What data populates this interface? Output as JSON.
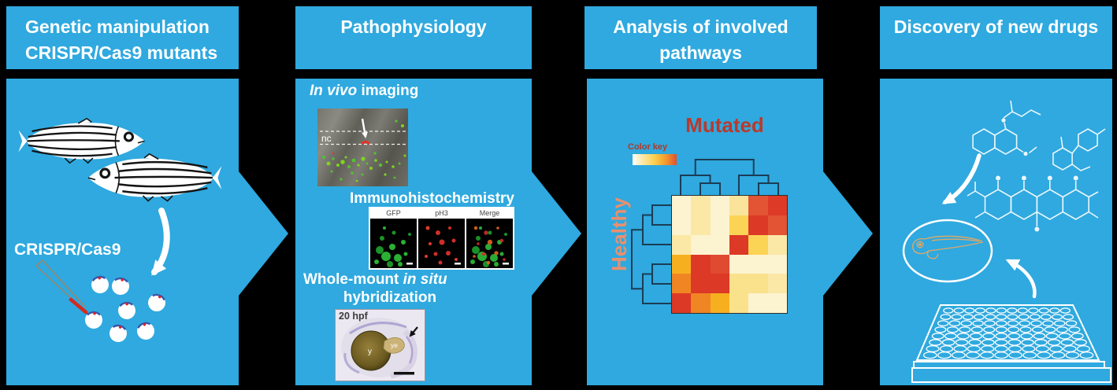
{
  "colors": {
    "panel_blue": "#2FA9DF",
    "background": "#000000",
    "text_white": "#FFFFFF",
    "mutated_red": "#B93A2C",
    "healthy_salmon": "#E8906E",
    "color_key_text": "#AF3A28",
    "dendrogram": "#1C3C55",
    "egg_cap_blue": "#3A55A8",
    "needle_red": "#D42A1E"
  },
  "panel1": {
    "header_line1": "Genetic manipulation",
    "header_line2": "CRISPR/Cas9 mutants",
    "crispr_label": "CRISPR/Cas9",
    "egg_count": 7
  },
  "panel2": {
    "header": "Pathophysiology",
    "invivo_label_italic": "In vivo",
    "invivo_label_rest": " imaging",
    "invivo_nc_label": "nc",
    "ihc_label": "Immunohistochemistry",
    "ihc_panel_labels": [
      "GFP",
      "pH3",
      "Merge"
    ],
    "wish_line1_regular": "Whole-mount ",
    "wish_line1_italic": "in situ",
    "wish_line2": "hybridization",
    "embryo_stage_label": "20 hpf",
    "embryo_yolk_label": "y",
    "embryo_ye_label": "ye"
  },
  "panel3": {
    "header_line1": "Analysis of involved",
    "header_line2": "pathways",
    "mutated_label": "Mutated",
    "healthy_label": "Healthy",
    "color_key_label": "Color key",
    "chart_data": {
      "type": "heatmap",
      "rows": 6,
      "cols": 6,
      "col_group_label": "Mutated",
      "row_group_label": "Healthy",
      "legend_label": "Color key",
      "legend_gradient": [
        "#FFFFFF",
        "#FDE6A0",
        "#FBCE4E",
        "#F29B2C",
        "#E2502F"
      ],
      "dendrograms": {
        "top": true,
        "left": true
      },
      "cell_colors": [
        [
          "#FCF3D0",
          "#FBE8A6",
          "#FCF3D0",
          "#FAE49B",
          "#E25433",
          "#DD3B28"
        ],
        [
          "#FCF3D0",
          "#FBE8A6",
          "#FCF3D0",
          "#FCD455",
          "#DC3927",
          "#E25433"
        ],
        [
          "#FBE8A6",
          "#FCF3D0",
          "#FCF3D0",
          "#DC3927",
          "#FCD455",
          "#FBE8A6"
        ],
        [
          "#F6B01F",
          "#DC3927",
          "#E04A30",
          "#FCF3D0",
          "#FCF3D0",
          "#FCF3D0"
        ],
        [
          "#F08524",
          "#DC3927",
          "#DC3927",
          "#FAE28C",
          "#FAE28C",
          "#FBE8A6"
        ],
        [
          "#DC3927",
          "#F08524",
          "#F6B01F",
          "#FAE28C",
          "#FCF3D0",
          "#FCF3D0"
        ]
      ]
    }
  },
  "panel4": {
    "header": "Discovery of new drugs",
    "plate_rows": 8,
    "plate_cols": 12
  }
}
